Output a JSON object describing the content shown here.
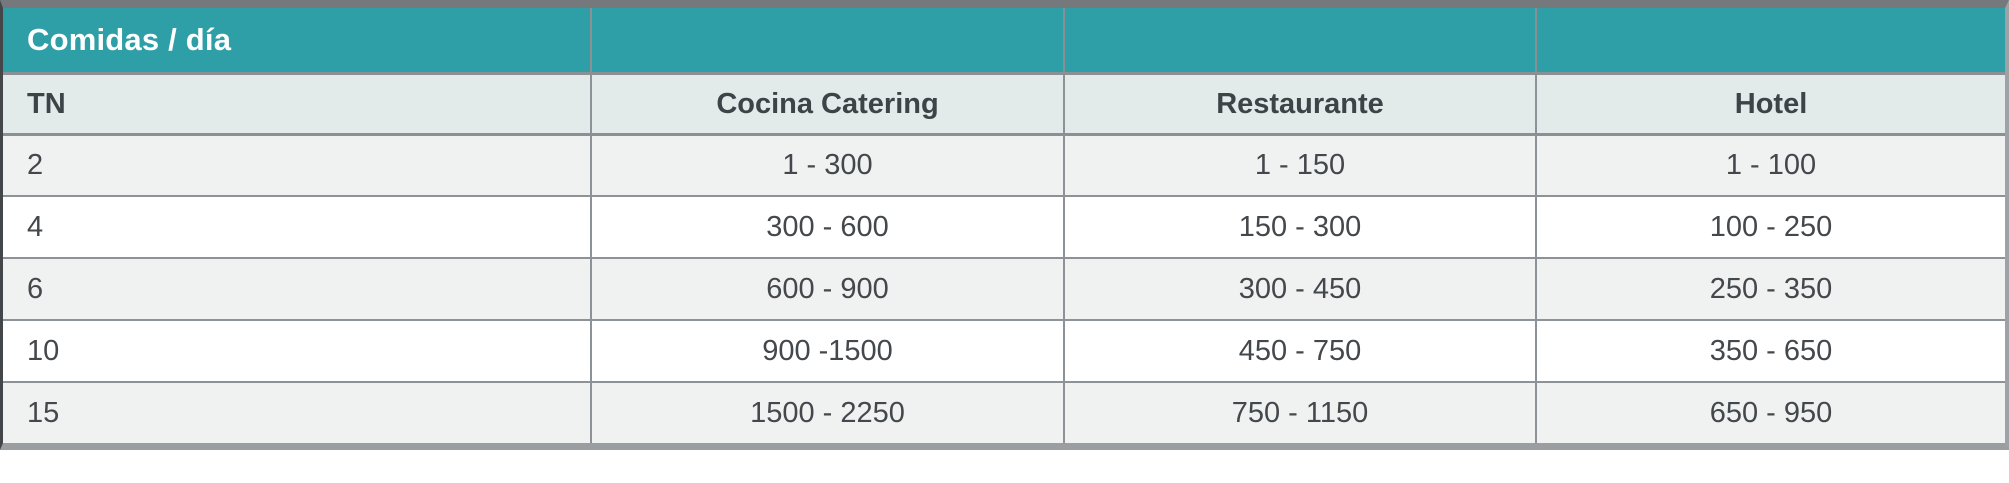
{
  "table": {
    "title": "Comidas / día",
    "columns": [
      "TN",
      "Cocina Catering",
      "Restaurante",
      "Hotel"
    ],
    "rows": [
      {
        "tn": "2",
        "values": [
          "1 - 300",
          "1 - 150",
          "1 - 100"
        ]
      },
      {
        "tn": "4",
        "values": [
          "300 - 600",
          "150 - 300",
          "100 - 250"
        ]
      },
      {
        "tn": "6",
        "values": [
          "600 - 900",
          "300 - 450",
          "250 - 350"
        ]
      },
      {
        "tn": "10",
        "values": [
          "900 -1500",
          "450 - 750",
          "350 - 650"
        ]
      },
      {
        "tn": "15",
        "values": [
          "1500 - 2250",
          "750 - 1150",
          "650 - 950"
        ]
      }
    ],
    "colors": {
      "header_teal": "#2e9ea7",
      "subheader_bg": "#e2ebea",
      "stripe_bg": "#f0f1f1",
      "plain_bg": "#ffffff",
      "grid_line": "#8d9296",
      "outer_border": "#9b9ea0",
      "title_text": "#ffffff",
      "header_text": "#3d4347",
      "body_text": "#43484c"
    }
  }
}
